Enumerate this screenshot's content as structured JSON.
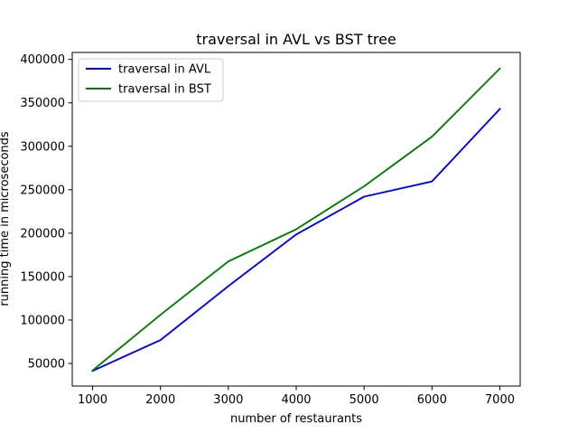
{
  "chart_data": {
    "type": "line",
    "title": "traversal in AVL vs BST tree",
    "xlabel": "number of restaurants",
    "ylabel": "running time in microseconds",
    "x": [
      1000,
      2000,
      3000,
      4000,
      5000,
      6000,
      7000
    ],
    "xlim": [
      700,
      7300
    ],
    "ylim": [
      24000,
      408000
    ],
    "xticks": [
      1000,
      2000,
      3000,
      4000,
      5000,
      6000,
      7000
    ],
    "yticks": [
      50000,
      100000,
      150000,
      200000,
      250000,
      300000,
      350000,
      400000
    ],
    "xtick_labels": [
      "1000",
      "2000",
      "3000",
      "4000",
      "5000",
      "6000",
      "7000"
    ],
    "ytick_labels": [
      "50000",
      "100000",
      "150000",
      "200000",
      "250000",
      "300000",
      "350000",
      "400000"
    ],
    "grid": false,
    "legend_position": "top-left",
    "series": [
      {
        "name": "traversal in AVL",
        "color": "#0000ff",
        "values": [
          41500,
          77000,
          139000,
          198500,
          242000,
          259500,
          343000
        ]
      },
      {
        "name": "traversal in BST",
        "color": "#008000",
        "values": [
          42000,
          106000,
          167500,
          204500,
          254000,
          311000,
          389500
        ]
      }
    ]
  }
}
